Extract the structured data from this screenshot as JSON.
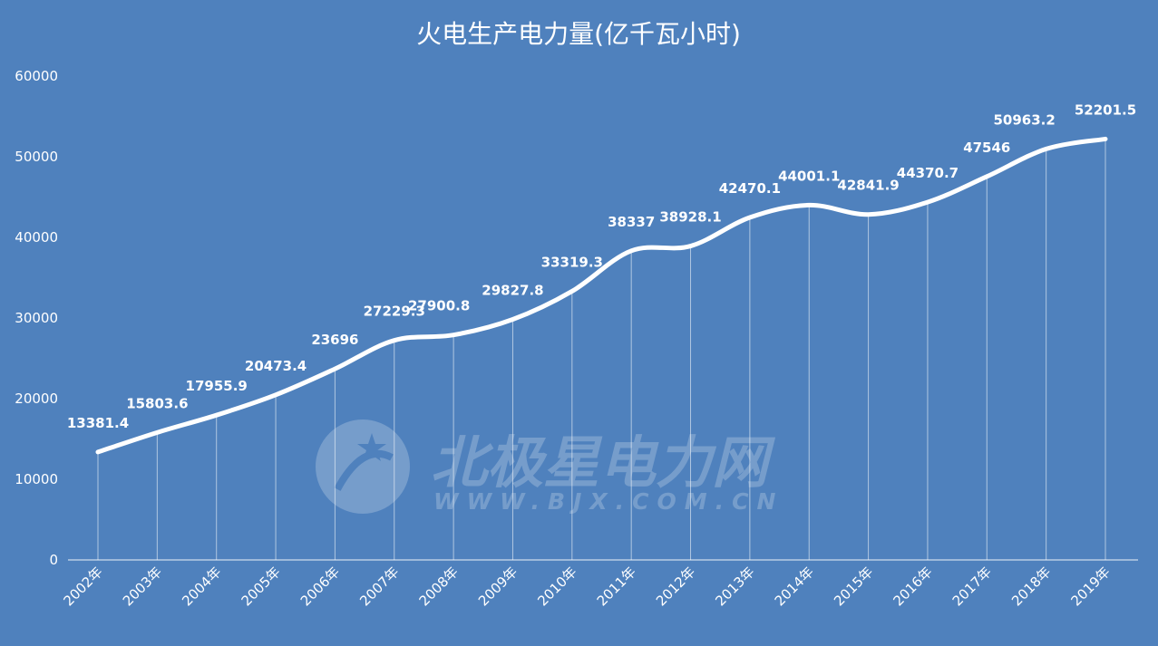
{
  "chart_data": {
    "type": "line",
    "title": "火电生产电力量(亿千瓦小时)",
    "xlabel": "",
    "ylabel": "",
    "categories": [
      "2002年",
      "2003年",
      "2004年",
      "2005年",
      "2006年",
      "2007年",
      "2008年",
      "2009年",
      "2010年",
      "2011年",
      "2012年",
      "2013年",
      "2014年",
      "2015年",
      "2016年",
      "2017年",
      "2018年",
      "2019年"
    ],
    "series": [
      {
        "values": [
          13381.4,
          15803.6,
          17955.9,
          20473.4,
          23696,
          27229.3,
          27900.8,
          29827.8,
          33319.3,
          38337,
          38928.1,
          42470.1,
          44001.1,
          42841.9,
          44370.7,
          47546,
          50963.2,
          52201.5
        ],
        "labels": [
          "13381.4",
          "15803.6",
          "17955.9",
          "20473.4",
          "23696",
          "27229.3",
          "27900.8",
          "29827.8",
          "33319.3",
          "38337",
          "38928.1",
          "42470.1",
          "44001.1",
          "42841.9",
          "44370.7",
          "47546",
          "50963.2",
          "52201.5"
        ]
      }
    ],
    "ylim": [
      0,
      60000
    ],
    "yticks": [
      "0",
      "10000",
      "20000",
      "30000",
      "40000",
      "50000",
      "60000"
    ],
    "grid": false,
    "drop_lines": true,
    "smooth": true,
    "colors": {
      "background": "#4f81bd",
      "line": "#ffffff",
      "text": "#ffffff"
    }
  },
  "watermark": {
    "name": "北极星电力网",
    "url": "WWW.BJX.COM.CN"
  }
}
